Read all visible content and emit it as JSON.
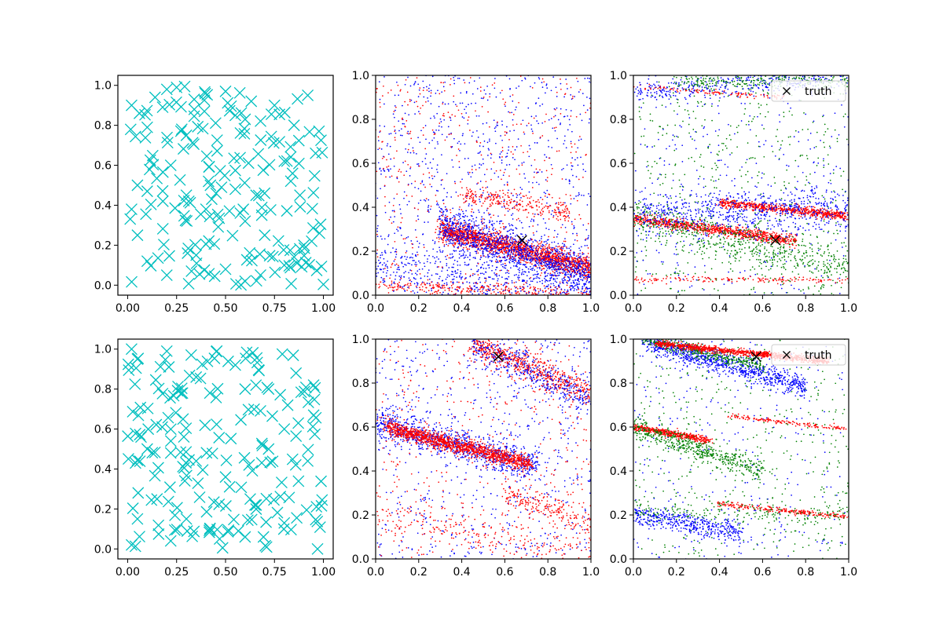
{
  "chart_data": [
    {
      "type": "scatter",
      "xlim": [
        -0.05,
        1.05
      ],
      "ylim": [
        -0.05,
        1.05
      ],
      "xticks": [
        "0.00",
        "0.25",
        "0.50",
        "0.75",
        "1.00"
      ],
      "yticks": [
        "0.0",
        "0.2",
        "0.4",
        "0.6",
        "0.8",
        "1.0"
      ],
      "grid": false,
      "series": [
        {
          "marker": "x",
          "color": "#00bfbf",
          "count": 200,
          "sample_points": [
            [
              0.02,
              0.9
            ],
            [
              0.06,
              0.86
            ],
            [
              0.1,
              0.79
            ],
            [
              0.14,
              0.94
            ],
            [
              0.2,
              0.98
            ],
            [
              0.25,
              0.99
            ],
            [
              0.3,
              0.75
            ],
            [
              0.34,
              0.88
            ],
            [
              0.5,
              0.97
            ],
            [
              0.55,
              0.85
            ],
            [
              0.6,
              0.83
            ],
            [
              0.75,
              0.9
            ],
            [
              0.85,
              0.8
            ],
            [
              0.92,
              0.95
            ],
            [
              0.02,
              0.38
            ],
            [
              0.05,
              0.5
            ],
            [
              0.1,
              0.47
            ],
            [
              0.18,
              0.42
            ],
            [
              0.22,
              0.6
            ],
            [
              0.3,
              0.45
            ],
            [
              0.4,
              0.38
            ],
            [
              0.55,
              0.48
            ],
            [
              0.6,
              0.32
            ],
            [
              0.8,
              0.62
            ],
            [
              0.88,
              0.45
            ],
            [
              0.96,
              0.66
            ],
            [
              0.05,
              0.25
            ],
            [
              0.1,
              0.12
            ],
            [
              0.2,
              0.05
            ],
            [
              0.35,
              0.15
            ],
            [
              0.5,
              0.08
            ],
            [
              0.6,
              0.02
            ],
            [
              0.7,
              0.25
            ],
            [
              0.8,
              0.1
            ],
            [
              0.9,
              0.2
            ],
            [
              0.98,
              0.26
            ]
          ]
        }
      ]
    },
    {
      "type": "scatter",
      "xlim": [
        0,
        1
      ],
      "ylim": [
        0,
        1
      ],
      "xticks": [
        "0.0",
        "0.2",
        "0.4",
        "0.6",
        "0.8",
        "1.0"
      ],
      "yticks": [
        "0.0",
        "0.2",
        "0.4",
        "0.6",
        "0.8",
        "1.0"
      ],
      "grid": false,
      "bands": [
        {
          "color": "#ff0000",
          "x0": 0.3,
          "y0": 0.3,
          "x1": 1.0,
          "y1": 0.12,
          "width": 0.05,
          "count": 1800
        },
        {
          "color": "#0000ff",
          "x0": 0.3,
          "y0": 0.32,
          "x1": 1.0,
          "y1": 0.08,
          "width": 0.1,
          "count": 1200
        },
        {
          "color": "#ff0000",
          "x0": 0.0,
          "y0": 0.05,
          "x1": 1.0,
          "y1": 0.0,
          "width": 0.03,
          "count": 300
        },
        {
          "color": "#0000ff",
          "x0": 0.0,
          "y0": 0.15,
          "x1": 1.0,
          "y1": 0.0,
          "width": 0.12,
          "count": 400
        },
        {
          "color": "#ff0000",
          "x0": 0.4,
          "y0": 0.46,
          "x1": 0.9,
          "y1": 0.38,
          "width": 0.05,
          "count": 250
        }
      ],
      "scatter_background": [
        {
          "color": "#0000ff",
          "count": 900
        },
        {
          "color": "#ff0000",
          "count": 450
        }
      ],
      "truth": {
        "x": 0.68,
        "y": 0.25,
        "marker": "x",
        "color": "#000000"
      }
    },
    {
      "type": "scatter",
      "xlim": [
        0,
        1
      ],
      "ylim": [
        0,
        1
      ],
      "xticks": [
        "0.0",
        "0.2",
        "0.4",
        "0.6",
        "0.8",
        "1.0"
      ],
      "yticks": [
        "0.0",
        "0.2",
        "0.4",
        "0.6",
        "0.8",
        "1.0"
      ],
      "grid": false,
      "bands": [
        {
          "color": "#ff0000",
          "x0": 0.0,
          "y0": 0.35,
          "x1": 0.75,
          "y1": 0.25,
          "width": 0.025,
          "count": 900
        },
        {
          "color": "#ff0000",
          "x0": 0.4,
          "y0": 0.42,
          "x1": 1.0,
          "y1": 0.36,
          "width": 0.02,
          "count": 700
        },
        {
          "color": "#ff0000",
          "x0": 0.0,
          "y0": 0.07,
          "x1": 1.0,
          "y1": 0.07,
          "width": 0.015,
          "count": 150
        },
        {
          "color": "#ff0000",
          "x0": 0.0,
          "y0": 0.95,
          "x1": 0.7,
          "y1": 0.9,
          "width": 0.01,
          "count": 120
        },
        {
          "color": "#008000",
          "x0": 0.0,
          "y0": 0.35,
          "x1": 1.0,
          "y1": 0.12,
          "width": 0.1,
          "count": 600
        },
        {
          "color": "#0000ff",
          "x0": 0.0,
          "y0": 0.36,
          "x1": 1.0,
          "y1": 0.4,
          "width": 0.1,
          "count": 700
        },
        {
          "color": "#0000ff",
          "x0": 0.0,
          "y0": 0.92,
          "x1": 1.0,
          "y1": 1.0,
          "width": 0.06,
          "count": 400
        },
        {
          "color": "#008000",
          "x0": 0.2,
          "y0": 0.97,
          "x1": 1.0,
          "y1": 0.98,
          "width": 0.04,
          "count": 250
        }
      ],
      "scatter_background": [
        {
          "color": "#008000",
          "count": 500
        },
        {
          "color": "#0000ff",
          "count": 350
        }
      ],
      "truth": {
        "x": 0.66,
        "y": 0.25,
        "marker": "x",
        "color": "#000000"
      },
      "legend": {
        "placement": "upper-right",
        "entries": [
          "truth"
        ]
      }
    },
    {
      "type": "scatter",
      "xlim": [
        -0.05,
        1.05
      ],
      "ylim": [
        -0.05,
        1.05
      ],
      "xticks": [
        "0.00",
        "0.25",
        "0.50",
        "0.75",
        "1.00"
      ],
      "yticks": [
        "0.0",
        "0.2",
        "0.4",
        "0.6",
        "0.8",
        "1.0"
      ],
      "grid": false,
      "series": [
        {
          "marker": "x",
          "color": "#00bfbf",
          "count": 200,
          "sample_points": [
            [
              0.02,
              1.0
            ],
            [
              0.05,
              0.95
            ],
            [
              0.2,
              0.99
            ],
            [
              0.28,
              0.78
            ],
            [
              0.35,
              0.86
            ],
            [
              0.42,
              0.78
            ],
            [
              0.55,
              0.92
            ],
            [
              0.6,
              0.8
            ],
            [
              0.72,
              0.8
            ],
            [
              0.86,
              0.88
            ],
            [
              0.95,
              0.82
            ],
            [
              0.04,
              0.43
            ],
            [
              0.1,
              0.5
            ],
            [
              0.22,
              0.48
            ],
            [
              0.35,
              0.44
            ],
            [
              0.5,
              0.36
            ],
            [
              0.62,
              0.42
            ],
            [
              0.72,
              0.5
            ],
            [
              0.8,
              0.6
            ],
            [
              0.92,
              0.44
            ],
            [
              0.05,
              0.15
            ],
            [
              0.15,
              0.25
            ],
            [
              0.22,
              0.04
            ],
            [
              0.3,
              0.15
            ],
            [
              0.42,
              0.1
            ],
            [
              0.6,
              0.06
            ],
            [
              0.65,
              0.22
            ],
            [
              0.8,
              0.13
            ],
            [
              0.97,
              0.0
            ],
            [
              0.02,
              0.02
            ]
          ]
        }
      ]
    },
    {
      "type": "scatter",
      "xlim": [
        0,
        1
      ],
      "ylim": [
        0,
        1
      ],
      "xticks": [
        "0.0",
        "0.2",
        "0.4",
        "0.6",
        "0.8",
        "1.0"
      ],
      "yticks": [
        "0.0",
        "0.2",
        "0.4",
        "0.6",
        "0.8",
        "1.0"
      ],
      "grid": false,
      "bands": [
        {
          "color": "#0000ff",
          "x0": 0.0,
          "y0": 0.62,
          "x1": 0.75,
          "y1": 0.42,
          "width": 0.07,
          "count": 900
        },
        {
          "color": "#ff0000",
          "x0": 0.05,
          "y0": 0.6,
          "x1": 0.72,
          "y1": 0.43,
          "width": 0.035,
          "count": 1300
        },
        {
          "color": "#ff0000",
          "x0": 0.45,
          "y0": 0.98,
          "x1": 1.0,
          "y1": 0.75,
          "width": 0.06,
          "count": 600
        },
        {
          "color": "#0000ff",
          "x0": 0.45,
          "y0": 0.98,
          "x1": 1.0,
          "y1": 0.72,
          "width": 0.08,
          "count": 350
        },
        {
          "color": "#ff0000",
          "x0": 0.6,
          "y0": 0.3,
          "x1": 1.0,
          "y1": 0.15,
          "width": 0.06,
          "count": 200
        },
        {
          "color": "#ff0000",
          "x0": 0.0,
          "y0": 0.2,
          "x1": 1.0,
          "y1": 0.02,
          "width": 0.08,
          "count": 200
        }
      ],
      "scatter_background": [
        {
          "color": "#0000ff",
          "count": 700
        },
        {
          "color": "#ff0000",
          "count": 450
        }
      ],
      "truth": {
        "x": 0.57,
        "y": 0.92,
        "marker": "x",
        "color": "#000000"
      }
    },
    {
      "type": "scatter",
      "xlim": [
        0,
        1
      ],
      "ylim": [
        0,
        1
      ],
      "xticks": [
        "0.0",
        "0.2",
        "0.4",
        "0.6",
        "0.8",
        "1.0"
      ],
      "yticks": [
        "0.0",
        "0.2",
        "0.4",
        "0.6",
        "0.8",
        "1.0"
      ],
      "grid": false,
      "bands": [
        {
          "color": "#0000ff",
          "x0": 0.05,
          "y0": 0.99,
          "x1": 0.8,
          "y1": 0.78,
          "width": 0.05,
          "count": 900
        },
        {
          "color": "#008000",
          "x0": 0.05,
          "y0": 1.0,
          "x1": 0.6,
          "y1": 0.88,
          "width": 0.03,
          "count": 400
        },
        {
          "color": "#ff0000",
          "x0": 0.1,
          "y0": 0.98,
          "x1": 0.9,
          "y1": 0.9,
          "width": 0.015,
          "count": 900
        },
        {
          "color": "#ff0000",
          "x0": 0.0,
          "y0": 0.6,
          "x1": 0.35,
          "y1": 0.54,
          "width": 0.015,
          "count": 500
        },
        {
          "color": "#008000",
          "x0": 0.0,
          "y0": 0.6,
          "x1": 0.6,
          "y1": 0.4,
          "width": 0.05,
          "count": 500
        },
        {
          "color": "#ff0000",
          "x0": 0.45,
          "y0": 0.65,
          "x1": 1.0,
          "y1": 0.59,
          "width": 0.01,
          "count": 150
        },
        {
          "color": "#ff0000",
          "x0": 0.4,
          "y0": 0.25,
          "x1": 1.0,
          "y1": 0.19,
          "width": 0.012,
          "count": 250
        },
        {
          "color": "#0000ff",
          "x0": 0.0,
          "y0": 0.2,
          "x1": 0.5,
          "y1": 0.12,
          "width": 0.05,
          "count": 450
        },
        {
          "color": "#008000",
          "x0": 0.0,
          "y0": 0.22,
          "x1": 1.0,
          "y1": 0.2,
          "width": 0.05,
          "count": 200
        }
      ],
      "scatter_background": [
        {
          "color": "#008000",
          "count": 450
        },
        {
          "color": "#0000ff",
          "count": 300
        }
      ],
      "truth": {
        "x": 0.57,
        "y": 0.92,
        "marker": "x",
        "color": "#000000"
      },
      "legend": {
        "placement": "upper-right",
        "entries": [
          "truth"
        ]
      }
    }
  ]
}
